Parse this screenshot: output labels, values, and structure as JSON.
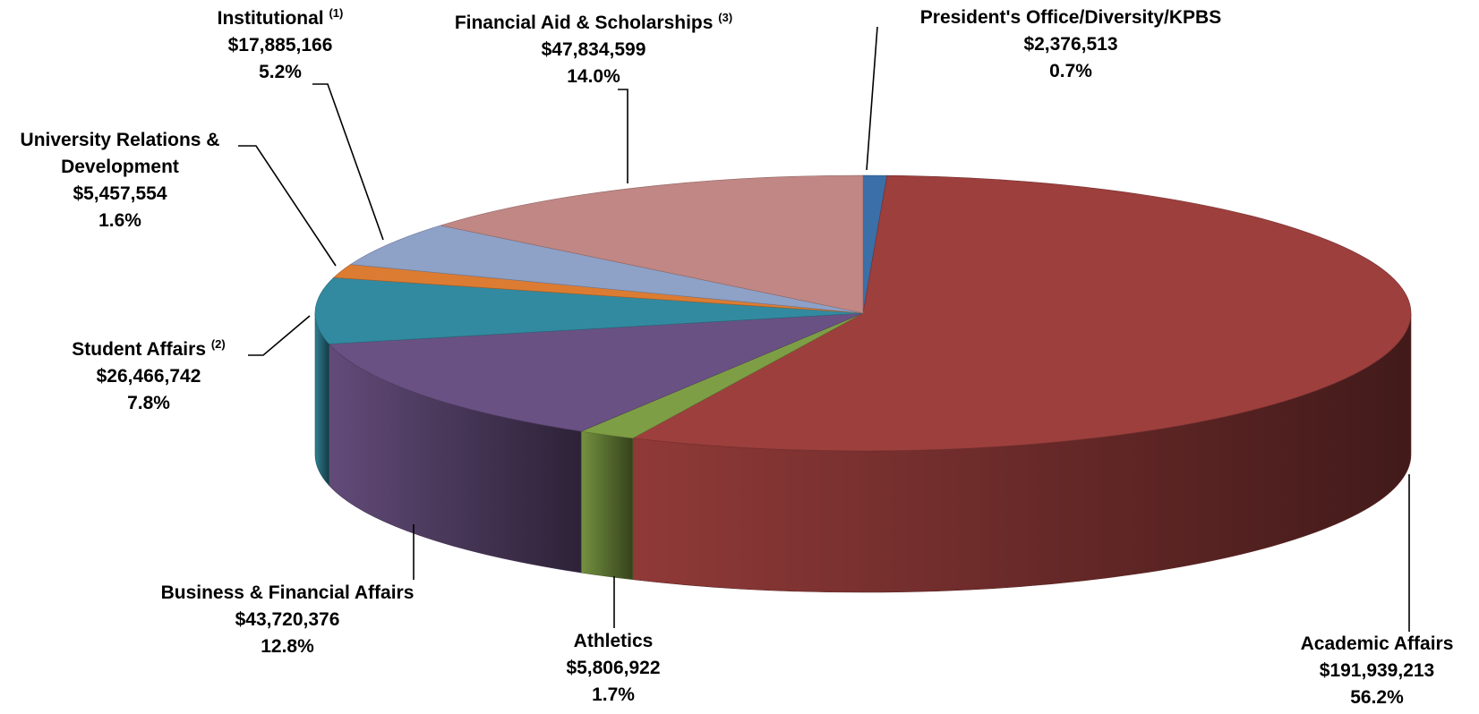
{
  "chart_data": {
    "type": "pie",
    "title": "",
    "slices": [
      {
        "name": "President's Office/Diversity/KPBS",
        "note": "",
        "amount": "$2,376,513",
        "pct": "0.7%",
        "value": 2376513,
        "color": "#3a6fa8"
      },
      {
        "name": "Academic Affairs",
        "note": "",
        "amount": "$191,939,213",
        "pct": "56.2%",
        "value": 191939213,
        "color": "#9c3f3d"
      },
      {
        "name": "Athletics",
        "note": "",
        "amount": "$5,806,922",
        "pct": "1.7%",
        "value": 5806922,
        "color": "#7e9e45"
      },
      {
        "name": "Business & Financial Affairs",
        "note": "",
        "amount": "$43,720,376",
        "pct": "12.8%",
        "value": 43720376,
        "color": "#6a5184"
      },
      {
        "name": "Student Affairs",
        "note": "(2)",
        "amount": "$26,466,742",
        "pct": "7.8%",
        "value": 26466742,
        "color": "#328aa0"
      },
      {
        "name": "University Relations & Development",
        "note": "",
        "amount": "$5,457,554",
        "pct": "1.6%",
        "value": 5457554,
        "color": "#dc7c32"
      },
      {
        "name": "Institutional",
        "note": "(1)",
        "amount": "$17,885,166",
        "pct": "5.2%",
        "value": 17885166,
        "color": "#8ea1c7"
      },
      {
        "name": "Financial Aid & Scholarships",
        "note": "(3)",
        "amount": "$47,834,599",
        "pct": "14.0%",
        "value": 47834599,
        "color": "#c08784"
      }
    ]
  }
}
